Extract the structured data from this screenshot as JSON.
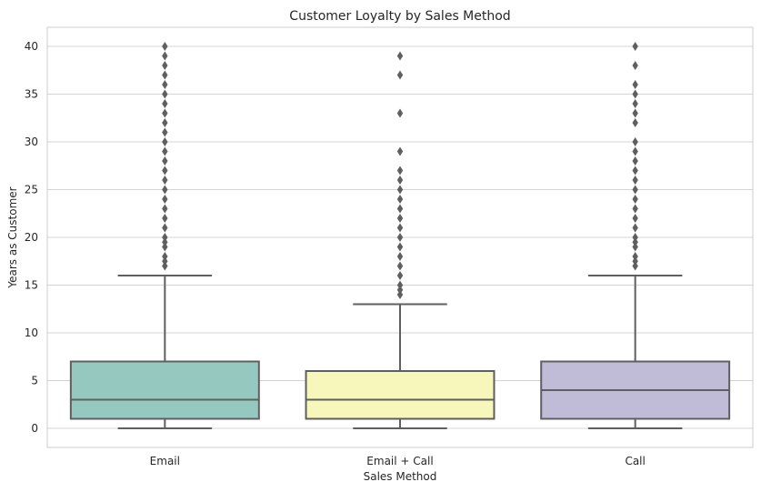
{
  "chart_data": {
    "type": "box",
    "title": "Customer Loyalty by Sales Method",
    "xlabel": "Sales Method",
    "ylabel": "Years as Customer",
    "categories": [
      "Email",
      "Email + Call",
      "Call"
    ],
    "ylim": [
      -2,
      42
    ],
    "yticks": [
      0,
      5,
      10,
      15,
      20,
      25,
      30,
      35,
      40
    ],
    "grid": true,
    "boxes": [
      {
        "name": "Email",
        "color": "#95c9c0",
        "min": 0,
        "q1": 1,
        "median": 3,
        "q3": 7,
        "max": 16,
        "outliers": [
          17,
          17.5,
          18,
          19,
          19.5,
          20,
          21,
          22,
          23,
          24,
          25,
          26,
          27,
          28,
          29,
          30,
          31,
          32,
          33,
          34,
          35,
          36,
          37,
          38,
          39,
          40
        ]
      },
      {
        "name": "Email + Call",
        "color": "#f7f6bb",
        "min": 0,
        "q1": 1,
        "median": 3,
        "q3": 6,
        "max": 13,
        "outliers": [
          14,
          14.5,
          15,
          16,
          17,
          18,
          19,
          20,
          21,
          22,
          23,
          24,
          25,
          26,
          27,
          29,
          33,
          37,
          39
        ]
      },
      {
        "name": "Call",
        "color": "#c0bbd7",
        "min": 0,
        "q1": 1,
        "median": 4,
        "q3": 7,
        "max": 16,
        "outliers": [
          17,
          17.5,
          18,
          19,
          19.5,
          20,
          21,
          22,
          23,
          24,
          25,
          26,
          27,
          28,
          29,
          30,
          32,
          33,
          34,
          35,
          36,
          38,
          40
        ]
      }
    ]
  }
}
